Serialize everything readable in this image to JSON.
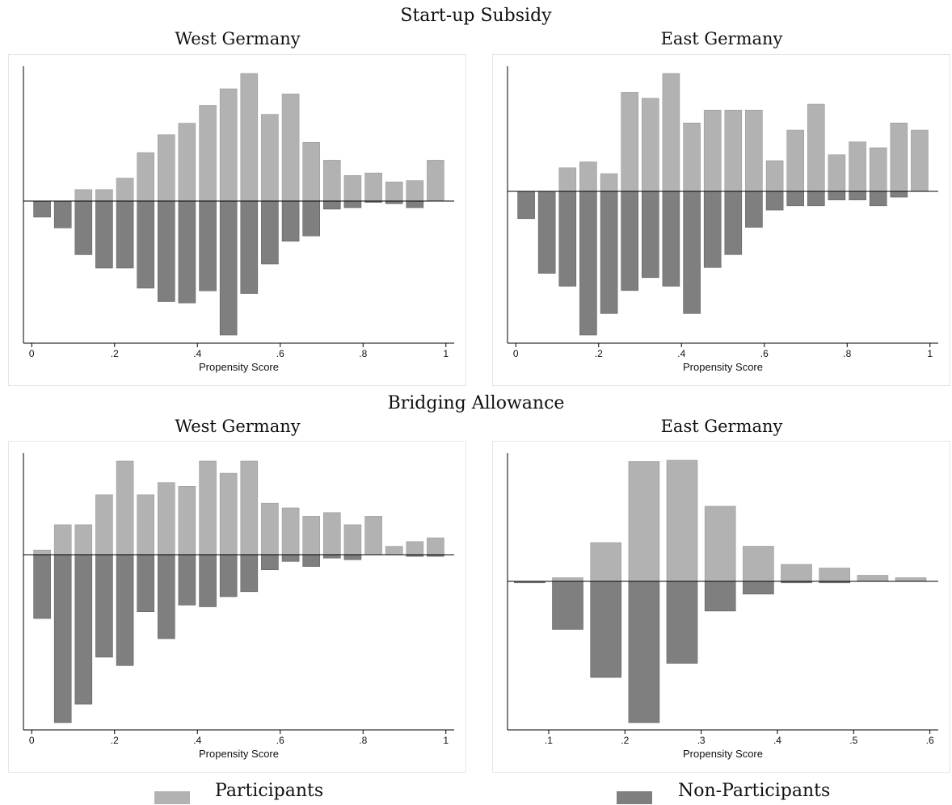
{
  "figure": {
    "block_titles": [
      "Start-up Subsidy",
      "Bridging Allowance"
    ],
    "legend": {
      "participants_label": "Participants",
      "non_participants_label": "Non-Participants",
      "participants_color": "#b2b2b2",
      "non_participants_color": "#7f7f7f"
    }
  },
  "chart_data": [
    {
      "type": "bar",
      "title": "West Germany",
      "xlabel": "Propensity Score",
      "x_ticks": [
        0,
        0.2,
        0.4,
        0.6,
        0.8,
        1
      ],
      "x_tick_labels": [
        "0",
        ".2",
        ".4",
        ".6",
        ".8",
        "1"
      ],
      "xlim": [
        -0.02,
        1.02
      ],
      "bin_width": 0.05,
      "series": [
        {
          "name": "Participants",
          "x": [
            0.025,
            0.075,
            0.125,
            0.175,
            0.225,
            0.275,
            0.325,
            0.375,
            0.425,
            0.475,
            0.525,
            0.575,
            0.625,
            0.675,
            0.725,
            0.775,
            0.825,
            0.875,
            0.925,
            0.975
          ],
          "values": [
            0,
            0,
            0.09,
            0.09,
            0.18,
            0.38,
            0.52,
            0.61,
            0.75,
            0.88,
            1.0,
            0.68,
            0.84,
            0.46,
            0.32,
            0.2,
            0.22,
            0.15,
            0.16,
            0.32
          ]
        },
        {
          "name": "Non-Participants",
          "x": [
            0.025,
            0.075,
            0.125,
            0.175,
            0.225,
            0.275,
            0.325,
            0.375,
            0.425,
            0.475,
            0.525,
            0.575,
            0.625,
            0.675,
            0.725,
            0.775,
            0.825,
            0.875,
            0.925,
            0.975
          ],
          "values": [
            0.12,
            0.2,
            0.4,
            0.5,
            0.5,
            0.65,
            0.75,
            0.76,
            0.67,
            1.0,
            0.69,
            0.47,
            0.3,
            0.26,
            0.06,
            0.05,
            0.01,
            0.02,
            0.05,
            0
          ]
        }
      ]
    },
    {
      "type": "bar",
      "title": "East Germany",
      "xlabel": "Propensity Score",
      "x_ticks": [
        0,
        0.2,
        0.4,
        0.6,
        0.8,
        1
      ],
      "x_tick_labels": [
        "0",
        ".2",
        ".4",
        ".6",
        ".8",
        "1"
      ],
      "xlim": [
        -0.02,
        1.02
      ],
      "bin_width": 0.05,
      "series": [
        {
          "name": "Participants",
          "x": [
            0.025,
            0.075,
            0.125,
            0.175,
            0.225,
            0.275,
            0.325,
            0.375,
            0.425,
            0.475,
            0.525,
            0.575,
            0.625,
            0.675,
            0.725,
            0.775,
            0.825,
            0.875,
            0.925,
            0.975
          ],
          "values": [
            0,
            0,
            0.2,
            0.25,
            0.15,
            0.84,
            0.79,
            1.0,
            0.58,
            0.69,
            0.69,
            0.69,
            0.26,
            0.52,
            0.74,
            0.31,
            0.42,
            0.37,
            0.58,
            0.52
          ]
        },
        {
          "name": "Non-Participants",
          "x": [
            0.025,
            0.075,
            0.125,
            0.175,
            0.225,
            0.275,
            0.325,
            0.375,
            0.425,
            0.475,
            0.525,
            0.575,
            0.625,
            0.675,
            0.725,
            0.775,
            0.825,
            0.875,
            0.925,
            0.975
          ],
          "values": [
            0.19,
            0.57,
            0.66,
            1.0,
            0.85,
            0.69,
            0.6,
            0.66,
            0.85,
            0.53,
            0.44,
            0.25,
            0.13,
            0.1,
            0.1,
            0.06,
            0.06,
            0.1,
            0.04,
            0
          ]
        }
      ]
    },
    {
      "type": "bar",
      "title": "West Germany",
      "xlabel": "Propensity Score",
      "x_ticks": [
        0,
        0.2,
        0.4,
        0.6,
        0.8,
        1
      ],
      "x_tick_labels": [
        "0",
        ".2",
        ".4",
        ".6",
        ".8",
        "1"
      ],
      "xlim": [
        -0.02,
        1.02
      ],
      "bin_width": 0.05,
      "series": [
        {
          "name": "Participants",
          "x": [
            0.025,
            0.075,
            0.125,
            0.175,
            0.225,
            0.275,
            0.325,
            0.375,
            0.425,
            0.475,
            0.525,
            0.575,
            0.625,
            0.675,
            0.725,
            0.775,
            0.825,
            0.875,
            0.925,
            0.975
          ],
          "values": [
            0.05,
            0.32,
            0.32,
            0.64,
            1.0,
            0.64,
            0.77,
            0.73,
            1.0,
            0.87,
            1.0,
            0.55,
            0.5,
            0.41,
            0.45,
            0.32,
            0.41,
            0.09,
            0.14,
            0.18
          ]
        },
        {
          "name": "Non-Participants",
          "x": [
            0.025,
            0.075,
            0.125,
            0.175,
            0.225,
            0.275,
            0.325,
            0.375,
            0.425,
            0.475,
            0.525,
            0.575,
            0.625,
            0.675,
            0.725,
            0.775,
            0.825,
            0.875,
            0.925,
            0.975
          ],
          "values": [
            0.38,
            1.0,
            0.89,
            0.61,
            0.66,
            0.34,
            0.5,
            0.3,
            0.31,
            0.25,
            0.22,
            0.09,
            0.04,
            0.07,
            0.02,
            0.03,
            0,
            0,
            0.01,
            0.01
          ]
        }
      ]
    },
    {
      "type": "bar",
      "title": "East Germany",
      "xlabel": "Propensity Score",
      "x_ticks": [
        0.1,
        0.2,
        0.3,
        0.4,
        0.5,
        0.6
      ],
      "x_tick_labels": [
        ".1",
        ".2",
        ".3",
        ".4",
        ".5",
        ".6"
      ],
      "xlim": [
        0.046,
        0.611
      ],
      "bin_width": 0.05,
      "series": [
        {
          "name": "Participants",
          "x": [
            0.075,
            0.125,
            0.175,
            0.225,
            0.275,
            0.325,
            0.375,
            0.425,
            0.475,
            0.525,
            0.575
          ],
          "values": [
            0,
            0.03,
            0.32,
            0.99,
            1.0,
            0.62,
            0.29,
            0.14,
            0.11,
            0.05,
            0.03
          ]
        },
        {
          "name": "Non-Participants",
          "x": [
            0.075,
            0.125,
            0.175,
            0.225,
            0.275,
            0.325,
            0.375,
            0.425,
            0.475,
            0.525,
            0.575
          ],
          "values": [
            0.01,
            0.34,
            0.68,
            1.0,
            0.58,
            0.21,
            0.09,
            0.01,
            0.01,
            0,
            0
          ]
        }
      ]
    }
  ]
}
